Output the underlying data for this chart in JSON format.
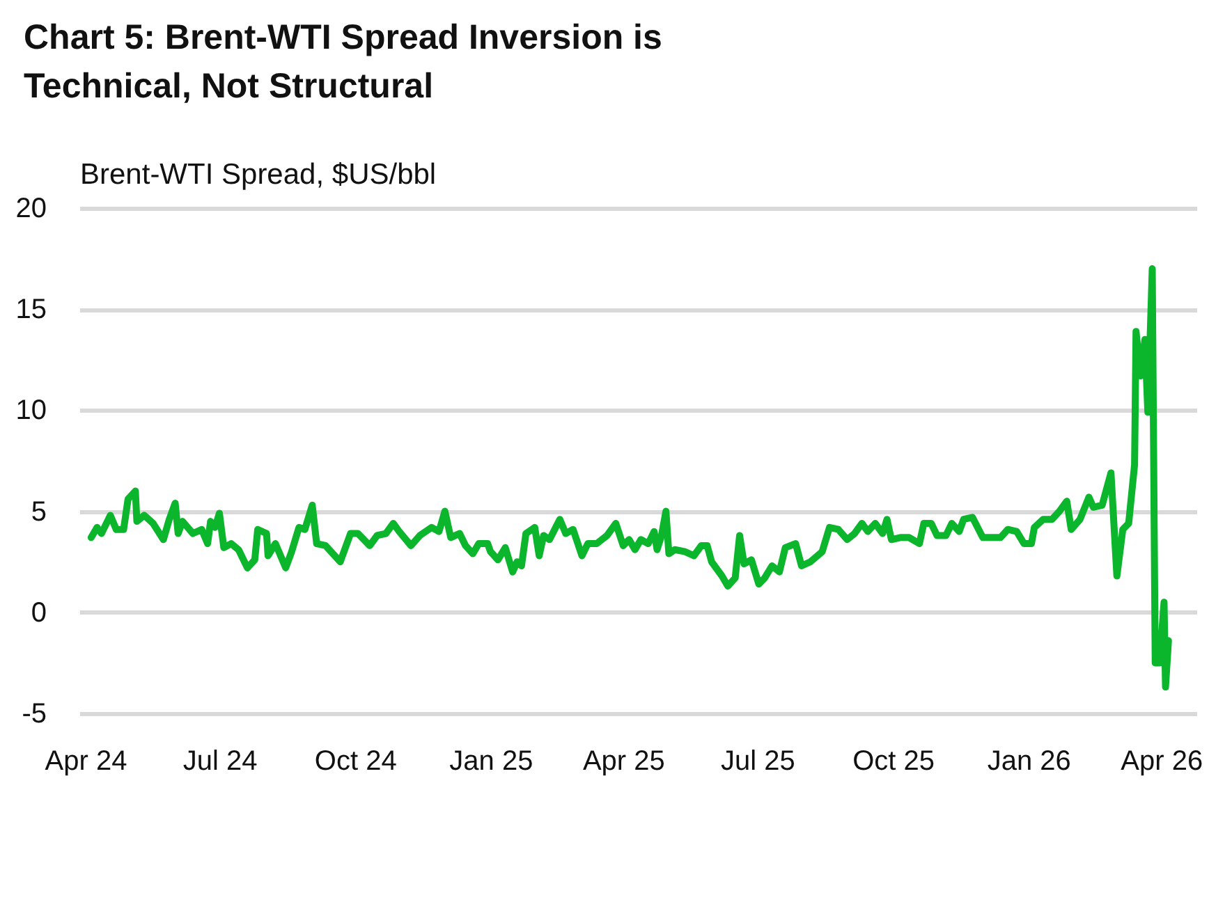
{
  "chart_data": {
    "type": "line",
    "title": "Chart 5: Brent-WTI Spread Inversion is Technical, Not Structural",
    "ylabel": "Brent-WTI Spread, $US/bbl",
    "x": [
      "2024-04-05",
      "2024-04-09",
      "2024-04-12",
      "2024-04-18",
      "2024-04-22",
      "2024-04-27",
      "2024-04-30",
      "2024-05-05",
      "2024-05-06",
      "2024-05-11",
      "2024-05-17",
      "2024-05-24",
      "2024-05-28",
      "2024-06-01",
      "2024-06-03",
      "2024-06-06",
      "2024-06-13",
      "2024-06-19",
      "2024-06-23",
      "2024-06-25",
      "2024-06-28",
      "2024-07-01",
      "2024-07-04",
      "2024-07-09",
      "2024-07-14",
      "2024-07-20",
      "2024-07-25",
      "2024-07-27",
      "2024-08-02",
      "2024-08-03",
      "2024-08-08",
      "2024-08-15",
      "2024-08-19",
      "2024-08-24",
      "2024-08-28",
      "2024-09-02",
      "2024-09-05",
      "2024-09-11",
      "2024-09-21",
      "2024-09-28",
      "2024-10-03",
      "2024-10-11",
      "2024-10-16",
      "2024-10-22",
      "2024-10-27",
      "2024-10-31",
      "2024-11-08",
      "2024-11-14",
      "2024-11-22",
      "2024-11-27",
      "2024-12-01",
      "2024-12-05",
      "2024-12-11",
      "2024-12-15",
      "2024-12-20",
      "2024-12-24",
      "2024-12-30",
      "2025-01-01",
      "2025-01-06",
      "2025-01-11",
      "2025-01-16",
      "2025-01-19",
      "2025-01-22",
      "2025-01-25",
      "2025-01-31",
      "2025-02-03",
      "2025-02-06",
      "2025-02-10",
      "2025-02-17",
      "2025-02-21",
      "2025-02-26",
      "2025-03-04",
      "2025-03-08",
      "2025-03-14",
      "2025-03-21",
      "2025-03-27",
      "2025-04-01",
      "2025-04-05",
      "2025-04-09",
      "2025-04-13",
      "2025-04-18",
      "2025-04-22",
      "2025-04-24",
      "2025-04-27",
      "2025-04-30",
      "2025-05-02",
      "2025-05-06",
      "2025-05-13",
      "2025-05-19",
      "2025-05-24",
      "2025-05-28",
      "2025-05-31",
      "2025-06-07",
      "2025-06-11",
      "2025-06-16",
      "2025-06-19",
      "2025-06-22",
      "2025-06-27",
      "2025-07-02",
      "2025-07-06",
      "2025-07-11",
      "2025-07-16",
      "2025-07-20",
      "2025-07-27",
      "2025-07-31",
      "2025-08-06",
      "2025-08-14",
      "2025-08-19",
      "2025-08-25",
      "2025-08-31",
      "2025-09-05",
      "2025-09-10",
      "2025-09-14",
      "2025-09-19",
      "2025-09-24",
      "2025-09-27",
      "2025-09-30",
      "2025-10-06",
      "2025-10-12",
      "2025-10-19",
      "2025-10-22",
      "2025-10-27",
      "2025-10-31",
      "2025-11-06",
      "2025-11-10",
      "2025-11-15",
      "2025-11-18",
      "2025-11-24",
      "2025-12-01",
      "2025-12-07",
      "2025-12-13",
      "2025-12-18",
      "2025-12-24",
      "2025-12-29",
      "2026-01-03",
      "2026-01-05",
      "2026-01-11",
      "2026-01-17",
      "2026-01-22",
      "2026-01-27",
      "2026-01-30",
      "2026-02-05",
      "2026-02-11",
      "2026-02-14",
      "2026-02-20",
      "2026-02-26",
      "2026-03-02",
      "2026-03-06",
      "2026-03-10",
      "2026-03-14",
      "2026-03-15",
      "2026-03-18",
      "2026-03-21",
      "2026-03-23",
      "2026-03-26",
      "2026-03-28",
      "2026-03-31",
      "2026-04-03",
      "2026-04-04",
      "2026-04-06"
    ],
    "series": [
      {
        "color": "#0bb52c",
        "values": [
          3.7,
          4.2,
          3.9,
          4.8,
          4.1,
          4.1,
          5.6,
          6.0,
          4.5,
          4.8,
          4.4,
          3.6,
          4.6,
          5.4,
          3.9,
          4.5,
          3.9,
          4.1,
          3.4,
          4.5,
          4.2,
          4.9,
          3.2,
          3.4,
          3.1,
          2.2,
          2.6,
          4.1,
          3.9,
          2.8,
          3.4,
          2.2,
          3.0,
          4.2,
          4.1,
          5.3,
          3.4,
          3.3,
          2.5,
          3.9,
          3.9,
          3.3,
          3.8,
          3.9,
          4.4,
          4.0,
          3.3,
          3.8,
          4.2,
          4.0,
          5.0,
          3.7,
          3.9,
          3.3,
          2.9,
          3.4,
          3.4,
          3.0,
          2.6,
          3.2,
          2.0,
          2.5,
          2.3,
          3.9,
          4.2,
          2.8,
          3.8,
          3.6,
          4.6,
          3.9,
          4.1,
          2.8,
          3.4,
          3.4,
          3.8,
          4.4,
          3.3,
          3.6,
          3.1,
          3.6,
          3.4,
          4.0,
          3.1,
          3.8,
          5.0,
          2.9,
          3.1,
          3.0,
          2.8,
          3.3,
          3.3,
          2.5,
          1.8,
          1.3,
          1.7,
          3.8,
          2.4,
          2.6,
          1.4,
          1.7,
          2.3,
          2.0,
          3.2,
          3.4,
          2.3,
          2.5,
          3.0,
          4.2,
          4.1,
          3.6,
          3.9,
          4.4,
          4.0,
          4.4,
          3.9,
          4.6,
          3.6,
          3.7,
          3.7,
          3.4,
          4.4,
          4.4,
          3.8,
          3.8,
          4.4,
          4.0,
          4.6,
          4.7,
          3.7,
          3.7,
          3.7,
          4.1,
          4.0,
          3.4,
          3.4,
          4.2,
          4.6,
          4.6,
          5.0,
          5.5,
          4.1,
          4.6,
          5.7,
          5.2,
          5.3,
          6.9,
          1.8,
          4.1,
          4.4,
          7.3,
          13.9,
          11.7,
          13.5,
          9.9,
          17.0,
          -2.5,
          -2.5,
          0.5,
          -3.7,
          -1.4
        ]
      }
    ],
    "xlim": [
      "2024-03-28",
      "2026-04-25"
    ],
    "xticks": [
      {
        "value": "2024-04-01",
        "label": "Apr 24"
      },
      {
        "value": "2024-07-01",
        "label": "Jul 24"
      },
      {
        "value": "2024-10-01",
        "label": "Oct 24"
      },
      {
        "value": "2025-01-01",
        "label": "Jan 25"
      },
      {
        "value": "2025-04-01",
        "label": "Apr 25"
      },
      {
        "value": "2025-07-01",
        "label": "Jul 25"
      },
      {
        "value": "2025-10-01",
        "label": "Oct 25"
      },
      {
        "value": "2026-01-01",
        "label": "Jan 26"
      },
      {
        "value": "2026-04-01",
        "label": "Apr 26"
      }
    ],
    "ylim": [
      -5,
      20
    ],
    "yticks": [
      -5,
      0,
      5,
      10,
      15,
      20
    ],
    "grid": "y"
  }
}
